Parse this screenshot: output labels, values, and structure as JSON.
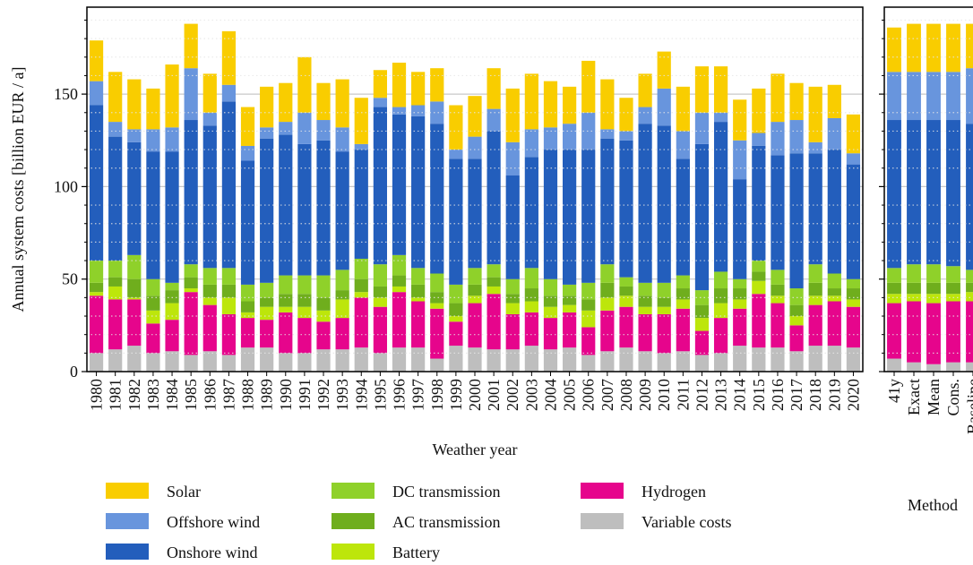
{
  "chart_data": [
    {
      "type": "stacked_bar",
      "ylabel": "Annual system costs [billion EUR / a]",
      "xlabel": "Weather year",
      "categories": [
        "1980",
        "1981",
        "1982",
        "1983",
        "1984",
        "1985",
        "1986",
        "1987",
        "1988",
        "1989",
        "1990",
        "1991",
        "1992",
        "1993",
        "1994",
        "1995",
        "1996",
        "1997",
        "1998",
        "1999",
        "2000",
        "2001",
        "2002",
        "2003",
        "2004",
        "2005",
        "2006",
        "2007",
        "2008",
        "2009",
        "2010",
        "2011",
        "2012",
        "2013",
        "2014",
        "2015",
        "2016",
        "2017",
        "2018",
        "2019",
        "2020"
      ],
      "ylim": [
        0,
        197
      ],
      "yticks": [
        0,
        50,
        100,
        150
      ],
      "yminorticks": [
        10,
        20,
        30,
        40,
        60,
        70,
        80,
        90,
        110,
        120,
        130,
        140,
        160,
        170,
        180,
        190
      ],
      "grid": true,
      "show_ytick_labels": true,
      "series": [
        {
          "name": "Solar",
          "color": "#f9cd00",
          "values": [
            22,
            27,
            27,
            22,
            34,
            24,
            21,
            29,
            21,
            22,
            21,
            30,
            20,
            26,
            25,
            15,
            24,
            18,
            18,
            24,
            22,
            22,
            29,
            30,
            25,
            20,
            28,
            27,
            18,
            18,
            20,
            24,
            25,
            25,
            22,
            24,
            26,
            20,
            30,
            18,
            21
          ]
        },
        {
          "name": "Offshore wind",
          "color": "#6895dd",
          "values": [
            13,
            8,
            7,
            12,
            13,
            28,
            7,
            9,
            8,
            6,
            7,
            17,
            11,
            13,
            3,
            5,
            4,
            6,
            12,
            5,
            12,
            12,
            18,
            15,
            12,
            14,
            20,
            5,
            5,
            9,
            20,
            15,
            17,
            5,
            21,
            7,
            18,
            18,
            6,
            17,
            6
          ]
        },
        {
          "name": "Onshore wind",
          "color": "#235ebc",
          "values": [
            84,
            67,
            61,
            69,
            71,
            78,
            77,
            90,
            67,
            78,
            76,
            71,
            73,
            64,
            59,
            85,
            76,
            82,
            81,
            68,
            59,
            72,
            56,
            60,
            70,
            73,
            72,
            68,
            74,
            86,
            85,
            63,
            79,
            81,
            54,
            62,
            62,
            73,
            60,
            67,
            62
          ]
        },
        {
          "name": "DC transmission",
          "color": "#8fd12a",
          "values": [
            12,
            9,
            13,
            9,
            4,
            7,
            9,
            9,
            9,
            8,
            10,
            10,
            12,
            11,
            11,
            12,
            11,
            9,
            10,
            10,
            9,
            7,
            8,
            11,
            9,
            6,
            9,
            10,
            5,
            7,
            8,
            7,
            8,
            9,
            5,
            6,
            8,
            9,
            10,
            8,
            5
          ]
        },
        {
          "name": "AC transmission",
          "color": "#6fae1d",
          "values": [
            5,
            5,
            10,
            8,
            7,
            6,
            7,
            7,
            6,
            5,
            7,
            7,
            7,
            5,
            7,
            6,
            6,
            7,
            6,
            7,
            6,
            5,
            5,
            7,
            6,
            5,
            6,
            8,
            5,
            6,
            5,
            6,
            7,
            8,
            6,
            5,
            6,
            6,
            7,
            4,
            6
          ]
        },
        {
          "name": "Battery",
          "color": "#bde60b",
          "values": [
            2,
            7,
            1,
            7,
            9,
            2,
            4,
            9,
            3,
            7,
            3,
            6,
            6,
            10,
            3,
            5,
            3,
            2,
            3,
            3,
            4,
            4,
            6,
            6,
            6,
            4,
            9,
            7,
            6,
            4,
            4,
            5,
            7,
            8,
            5,
            7,
            4,
            5,
            5,
            3,
            4
          ]
        },
        {
          "name": "Hydrogen",
          "color": "#e6058c",
          "values": [
            31,
            27,
            25,
            16,
            17,
            34,
            25,
            22,
            16,
            15,
            22,
            19,
            15,
            17,
            27,
            25,
            30,
            25,
            27,
            13,
            24,
            30,
            19,
            18,
            17,
            19,
            15,
            22,
            22,
            20,
            21,
            23,
            13,
            19,
            20,
            29,
            24,
            14,
            22,
            24,
            22
          ]
        },
        {
          "name": "Variable costs",
          "color": "#bebebe",
          "values": [
            10,
            12,
            14,
            10,
            11,
            9,
            11,
            9,
            13,
            13,
            10,
            10,
            12,
            12,
            13,
            10,
            13,
            13,
            7,
            14,
            13,
            12,
            12,
            14,
            12,
            13,
            9,
            11,
            13,
            11,
            10,
            11,
            9,
            10,
            14,
            13,
            13,
            11,
            14,
            14,
            13
          ]
        }
      ]
    },
    {
      "type": "stacked_bar",
      "xlabel": "Method",
      "categories": [
        "41y",
        "Exact",
        "Mean",
        "Cons.",
        "Baseline"
      ],
      "ylim": [
        0,
        197
      ],
      "yticks": [
        0,
        50,
        100,
        150
      ],
      "yminorticks": [
        10,
        20,
        30,
        40,
        60,
        70,
        80,
        90,
        110,
        120,
        130,
        140,
        160,
        170,
        180,
        190
      ],
      "grid": true,
      "show_ytick_labels": false,
      "series": [
        {
          "color": "#f9cd00",
          "values": [
            24,
            26,
            26,
            26,
            24
          ]
        },
        {
          "color": "#6895dd",
          "values": [
            26,
            26,
            26,
            26,
            30
          ]
        },
        {
          "color": "#235ebc",
          "values": [
            80,
            78,
            78,
            79,
            79
          ]
        },
        {
          "color": "#8fd12a",
          "values": [
            8,
            10,
            10,
            9,
            7
          ]
        },
        {
          "color": "#6fae1d",
          "values": [
            6,
            6,
            6,
            6,
            5
          ]
        },
        {
          "color": "#bde60b",
          "values": [
            5,
            4,
            5,
            4,
            5
          ]
        },
        {
          "color": "#e6058c",
          "values": [
            30,
            33,
            33,
            33,
            33
          ]
        },
        {
          "color": "#bebebe",
          "values": [
            7,
            5,
            4,
            5,
            5
          ]
        }
      ]
    }
  ]
}
